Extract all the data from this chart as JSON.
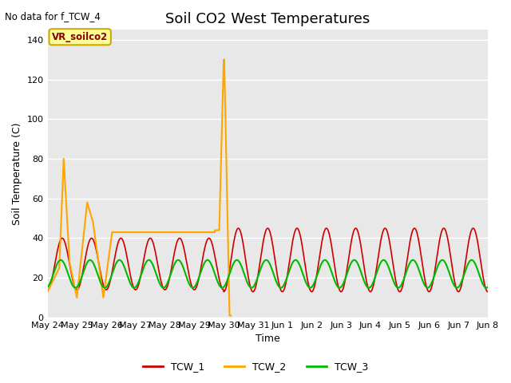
{
  "title": "Soil CO2 West Temperatures",
  "ylabel": "Soil Temperature (C)",
  "xlabel": "Time",
  "no_data_text": "No data for f_TCW_4",
  "annotation_text": "VR_soilco2",
  "ylim": [
    0,
    145
  ],
  "yticks": [
    0,
    20,
    40,
    60,
    80,
    100,
    120,
    140
  ],
  "bg_color": "#e8e8e8",
  "legend_entries": [
    "TCW_1",
    "TCW_2",
    "TCW_3"
  ],
  "tcw1_color": "#cc0000",
  "tcw2_color": "#ffa500",
  "tcw3_color": "#00bb00",
  "tcw1_lw": 1.2,
  "tcw2_lw": 1.5,
  "tcw3_lw": 1.5,
  "xtick_labels": [
    "May 24",
    "May 25",
    "May 26",
    "May 27",
    "May 28",
    "May 29",
    "May 30",
    "May 31",
    "Jun 1",
    "Jun 2",
    "Jun 3",
    "Jun 4",
    "Jun 5",
    "Jun 6",
    "Jun 7",
    "Jun 8"
  ],
  "title_fontsize": 13,
  "axis_label_fontsize": 9,
  "tick_fontsize": 8
}
